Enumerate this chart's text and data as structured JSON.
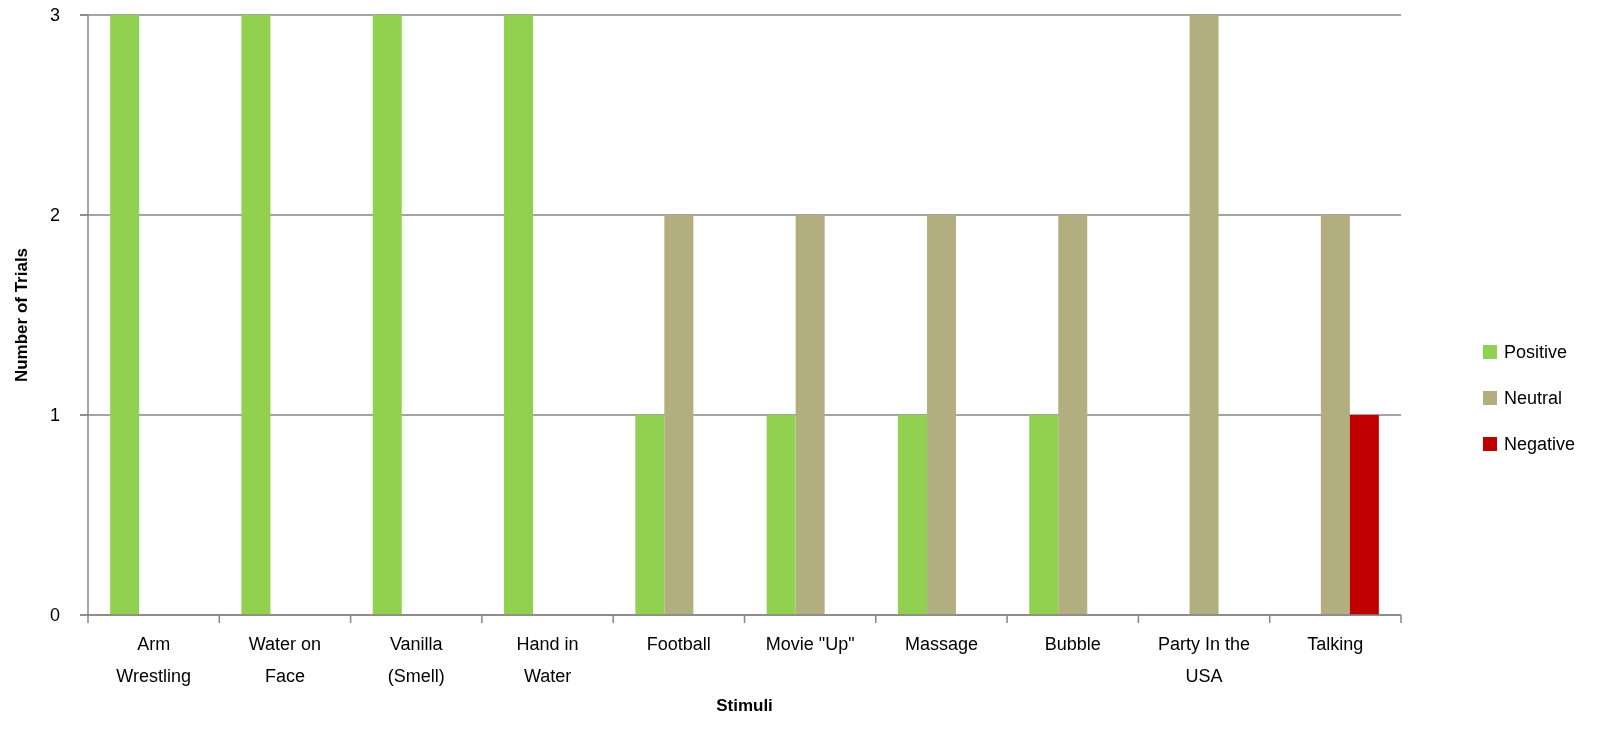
{
  "chart_data": {
    "type": "bar",
    "xlabel": "Stimuli",
    "ylabel": "Number of Trials",
    "categories": [
      "Arm Wrestling",
      "Water on Face",
      "Vanilla (Smell)",
      "Hand in Water",
      "Football",
      "Movie \"Up\"",
      "Massage",
      "Bubble",
      "Party In the USA",
      "Talking"
    ],
    "series": [
      {
        "name": "Positive",
        "color": "#92d050",
        "values": [
          3,
          3,
          3,
          3,
          1,
          1,
          1,
          1,
          null,
          null
        ]
      },
      {
        "name": "Neutral",
        "color": "#b3ae7f",
        "values": [
          null,
          null,
          null,
          null,
          2,
          2,
          2,
          2,
          3,
          2
        ]
      },
      {
        "name": "Negative",
        "color": "#c00000",
        "values": [
          null,
          null,
          null,
          null,
          null,
          null,
          null,
          null,
          null,
          1
        ]
      }
    ],
    "ylim": [
      0,
      3
    ],
    "yticks": [
      0,
      1,
      2,
      3
    ],
    "grid": "y",
    "legend": "right"
  }
}
